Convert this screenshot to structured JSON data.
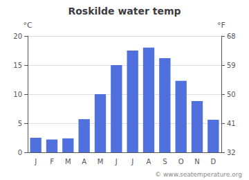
{
  "chart_data": {
    "type": "bar",
    "title": "Roskilde water temp",
    "categories": [
      "J",
      "F",
      "M",
      "A",
      "M",
      "J",
      "J",
      "A",
      "S",
      "O",
      "N",
      "D"
    ],
    "values": [
      2.5,
      2.2,
      2.4,
      5.7,
      10.0,
      15.0,
      17.5,
      18.0,
      16.2,
      12.3,
      8.8,
      5.6
    ],
    "ylabel": "°C",
    "y2label": "°F",
    "ylim": [
      0,
      20
    ],
    "yticks": [
      0,
      5,
      10,
      15,
      20
    ],
    "y2lim": [
      32,
      68
    ],
    "y2ticks": [
      32,
      41,
      50,
      59,
      68
    ],
    "grid": true,
    "annotations": [
      "© www.seatemperature.org"
    ]
  }
}
